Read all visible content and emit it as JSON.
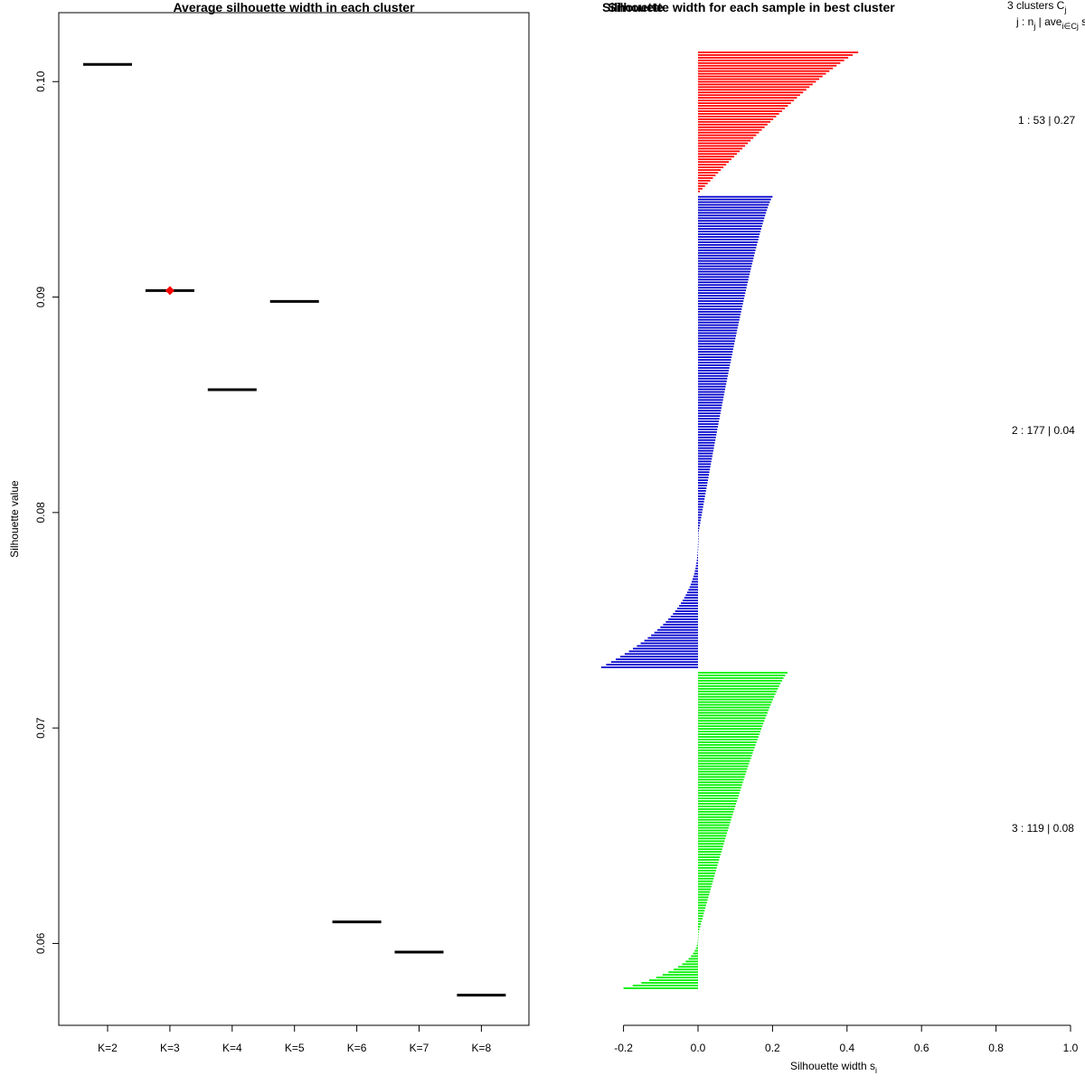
{
  "chart_data": [
    {
      "type": "scatter",
      "title": "Average silhouette width in each cluster",
      "xlabel": "",
      "ylabel": "Silhouette value",
      "categories": [
        "K=2",
        "K=3",
        "K=4",
        "K=5",
        "K=6",
        "K=7",
        "K=8"
      ],
      "values": [
        0.1008,
        0.0903,
        0.0857,
        0.0898,
        0.061,
        0.0596,
        0.0576
      ],
      "best_index": 1,
      "best_color": "#ff0000",
      "yticks": [
        0.06,
        0.07,
        0.08,
        0.09,
        0.1
      ],
      "ytick_labels": [
        "0.06",
        "0.07",
        "0.08",
        "0.09",
        "0.10"
      ],
      "ylim": [
        0.0562,
        0.1032
      ]
    },
    {
      "type": "bar",
      "orientation": "horizontal",
      "title": "Silhouette width for each sample in best cluster",
      "overlap_title": "Silhouette",
      "xlabel": "Silhouette width s",
      "xlabel_sub": "i",
      "xlim": [
        -0.2,
        1.0
      ],
      "xticks": [
        -0.2,
        0.0,
        0.2,
        0.4,
        0.6,
        0.8,
        1.0
      ],
      "xtick_labels": [
        "-0.2",
        "0.0",
        "0.2",
        "0.4",
        "0.6",
        "0.8",
        "1.0"
      ],
      "legend_header_1": "3  clusters  C",
      "legend_header_1_sub": "j",
      "legend_header_2": "j :  n",
      "legend_header_2_sub": "j",
      "legend_header_2_mid": " | ave",
      "legend_header_2_sub2": "i∈Cj",
      "legend_header_2_tail": "  s",
      "clusters": [
        {
          "label": "1 :   53  |  0.27",
          "n": 53,
          "color": "#ff0000",
          "max": 0.43,
          "min": 0.0,
          "low": 0.005
        },
        {
          "label": "2 :   177  |  0.04",
          "n": 177,
          "color": "#0000cd",
          "max": 0.2,
          "min": -0.26,
          "low": 0.0
        },
        {
          "label": "3 :   119  |  0.08",
          "n": 119,
          "color": "#00ee00",
          "max": 0.24,
          "min": -0.2,
          "low": 0.0
        }
      ]
    }
  ]
}
